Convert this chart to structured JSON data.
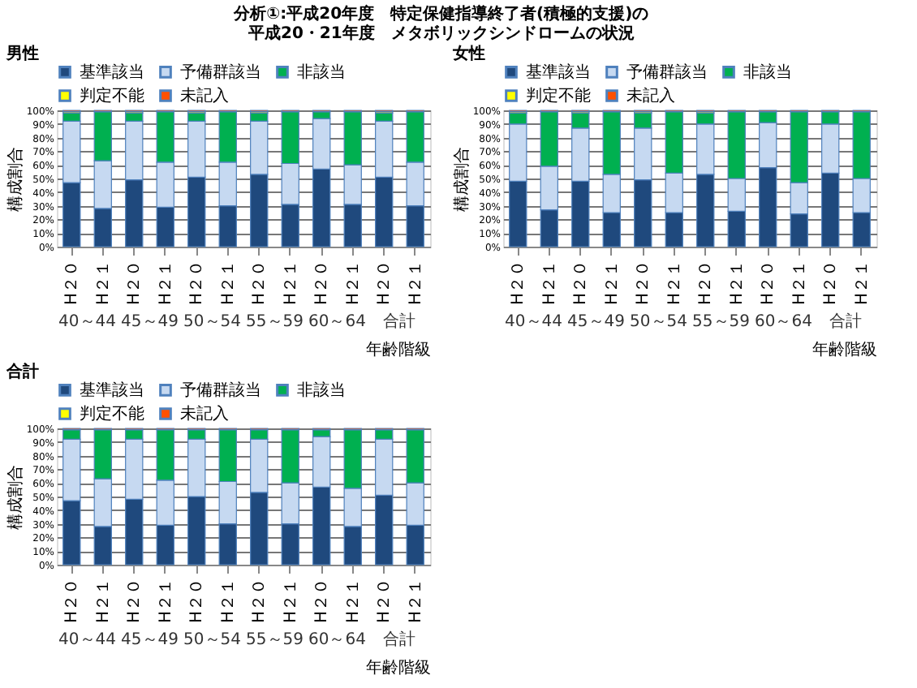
{
  "chart_data": [
    {
      "type": "bar",
      "stacked": true,
      "title": [
        "分析①:平成20年度　特定保健指導終了者(積極的支援)の",
        "平成20・21年度　メタボリックシンドロームの状況"
      ],
      "subtitle": "男性",
      "ylabel": "構成割合",
      "xlabel": "年齢階級",
      "categories": [
        "H２０",
        "H２１",
        "H２０",
        "H２１",
        "H２０",
        "H２１",
        "H２０",
        "H２１",
        "H２０",
        "H２１",
        "H２０",
        "H２１"
      ],
      "annotations": [
        "40～44",
        "45～49",
        "50～54",
        "55～59",
        "60～64",
        "合計"
      ],
      "ylim": [
        0,
        100
      ],
      "yticks": [
        {
          "value": 0,
          "label": "0%"
        },
        {
          "value": 10,
          "label": "10%"
        },
        {
          "value": 20,
          "label": "20%"
        },
        {
          "value": 30,
          "label": "30%"
        },
        {
          "value": 40,
          "label": "40%"
        },
        {
          "value": 50,
          "label": "50%"
        },
        {
          "value": 60,
          "label": "60%"
        },
        {
          "value": 70,
          "label": "70%"
        },
        {
          "value": 80,
          "label": "80%"
        },
        {
          "value": 90,
          "label": "90%"
        },
        {
          "value": 100,
          "label": "100%"
        }
      ],
      "grid": "y",
      "legend": "top",
      "series": [
        {
          "name": "基準該当",
          "color": "#1f497d",
          "values": [
            47,
            28,
            49,
            29,
            51,
            30,
            53,
            31,
            57,
            31,
            51,
            30
          ]
        },
        {
          "name": "予備群該当",
          "color": "#c6d9f1",
          "values": [
            45,
            35,
            43,
            33,
            41,
            32,
            39,
            30,
            37,
            29,
            41,
            32
          ]
        },
        {
          "name": "非該当",
          "color": "#00b050",
          "values": [
            6,
            36,
            6,
            37,
            6,
            37,
            6,
            38,
            5,
            39,
            6,
            37
          ]
        },
        {
          "name": "判定不能",
          "color": "#ffff00",
          "values": [
            1,
            0,
            1,
            0,
            1,
            0,
            1,
            0,
            0,
            0,
            1,
            0
          ]
        },
        {
          "name": "未記入",
          "color": "#ff5000",
          "values": [
            1,
            1,
            1,
            1,
            1,
            1,
            1,
            1,
            1,
            1,
            1,
            1
          ]
        }
      ]
    },
    {
      "type": "bar",
      "stacked": true,
      "subtitle": "女性",
      "ylabel": "構成割合",
      "xlabel": "年齢階級",
      "categories": [
        "H２０",
        "H２１",
        "H２０",
        "H２１",
        "H２０",
        "H２１",
        "H２０",
        "H２１",
        "H２０",
        "H２１",
        "H２０",
        "H２１"
      ],
      "annotations": [
        "40～44",
        "45～49",
        "50～54",
        "55～59",
        "60～64",
        "合計"
      ],
      "ylim": [
        0,
        100
      ],
      "yticks": [
        {
          "value": 0,
          "label": "0%"
        },
        {
          "value": 10,
          "label": "10%"
        },
        {
          "value": 20,
          "label": "20%"
        },
        {
          "value": 30,
          "label": "30%"
        },
        {
          "value": 40,
          "label": "40%"
        },
        {
          "value": 50,
          "label": "50%"
        },
        {
          "value": 60,
          "label": "60%"
        },
        {
          "value": 70,
          "label": "70%"
        },
        {
          "value": 80,
          "label": "80%"
        },
        {
          "value": 90,
          "label": "90%"
        },
        {
          "value": 100,
          "label": "100%"
        }
      ],
      "grid": "y",
      "legend": "top",
      "series": [
        {
          "name": "基準該当",
          "color": "#1f497d",
          "values": [
            48,
            27,
            48,
            25,
            49,
            25,
            53,
            26,
            58,
            24,
            54,
            25
          ]
        },
        {
          "name": "予備群該当",
          "color": "#c6d9f1",
          "values": [
            42,
            32,
            39,
            28,
            38,
            29,
            37,
            24,
            33,
            23,
            36,
            25
          ]
        },
        {
          "name": "非該当",
          "color": "#00b050",
          "values": [
            8,
            40,
            11,
            46,
            11,
            45,
            8,
            49,
            8,
            52,
            9,
            49
          ]
        },
        {
          "name": "判定不能",
          "color": "#ffff00",
          "values": [
            1,
            0,
            1,
            0,
            1,
            0,
            1,
            0,
            0,
            0,
            0,
            0
          ]
        },
        {
          "name": "未記入",
          "color": "#ff5000",
          "values": [
            1,
            1,
            1,
            1,
            1,
            1,
            1,
            1,
            1,
            1,
            1,
            1
          ]
        }
      ]
    },
    {
      "type": "bar",
      "stacked": true,
      "subtitle": "合計",
      "ylabel": "構成割合",
      "xlabel": "年齢階級",
      "categories": [
        "H２０",
        "H２１",
        "H２０",
        "H２１",
        "H２０",
        "H２１",
        "H２０",
        "H２１",
        "H２０",
        "H２１",
        "H２０",
        "H２１"
      ],
      "annotations": [
        "40～44",
        "45～49",
        "50～54",
        "55～59",
        "60～64",
        "合計"
      ],
      "ylim": [
        0,
        100
      ],
      "yticks": [
        {
          "value": 0,
          "label": "0%"
        },
        {
          "value": 10,
          "label": "10%"
        },
        {
          "value": 20,
          "label": "20%"
        },
        {
          "value": 30,
          "label": "30%"
        },
        {
          "value": 40,
          "label": "40%"
        },
        {
          "value": 50,
          "label": "50%"
        },
        {
          "value": 60,
          "label": "60%"
        },
        {
          "value": 70,
          "label": "70%"
        },
        {
          "value": 80,
          "label": "80%"
        },
        {
          "value": 90,
          "label": "90%"
        },
        {
          "value": 100,
          "label": "100%"
        }
      ],
      "grid": "y",
      "legend": "top",
      "series": [
        {
          "name": "基準該当",
          "color": "#1f497d",
          "values": [
            47,
            28,
            48,
            29,
            50,
            30,
            53,
            30,
            57,
            28,
            51,
            29
          ]
        },
        {
          "name": "予備群該当",
          "color": "#c6d9f1",
          "values": [
            45,
            35,
            44,
            33,
            42,
            31,
            39,
            30,
            37,
            28,
            41,
            31
          ]
        },
        {
          "name": "非該当",
          "color": "#00b050",
          "values": [
            7,
            36,
            7,
            37,
            7,
            38,
            7,
            39,
            5,
            43,
            7,
            39
          ]
        },
        {
          "name": "判定不能",
          "color": "#ffff00",
          "values": [
            0,
            0,
            0,
            0,
            0,
            0,
            0,
            0,
            0,
            0,
            0,
            0
          ]
        },
        {
          "name": "未記入",
          "color": "#ff5000",
          "values": [
            1,
            1,
            1,
            1,
            1,
            1,
            1,
            1,
            1,
            1,
            1,
            1
          ]
        }
      ]
    }
  ]
}
